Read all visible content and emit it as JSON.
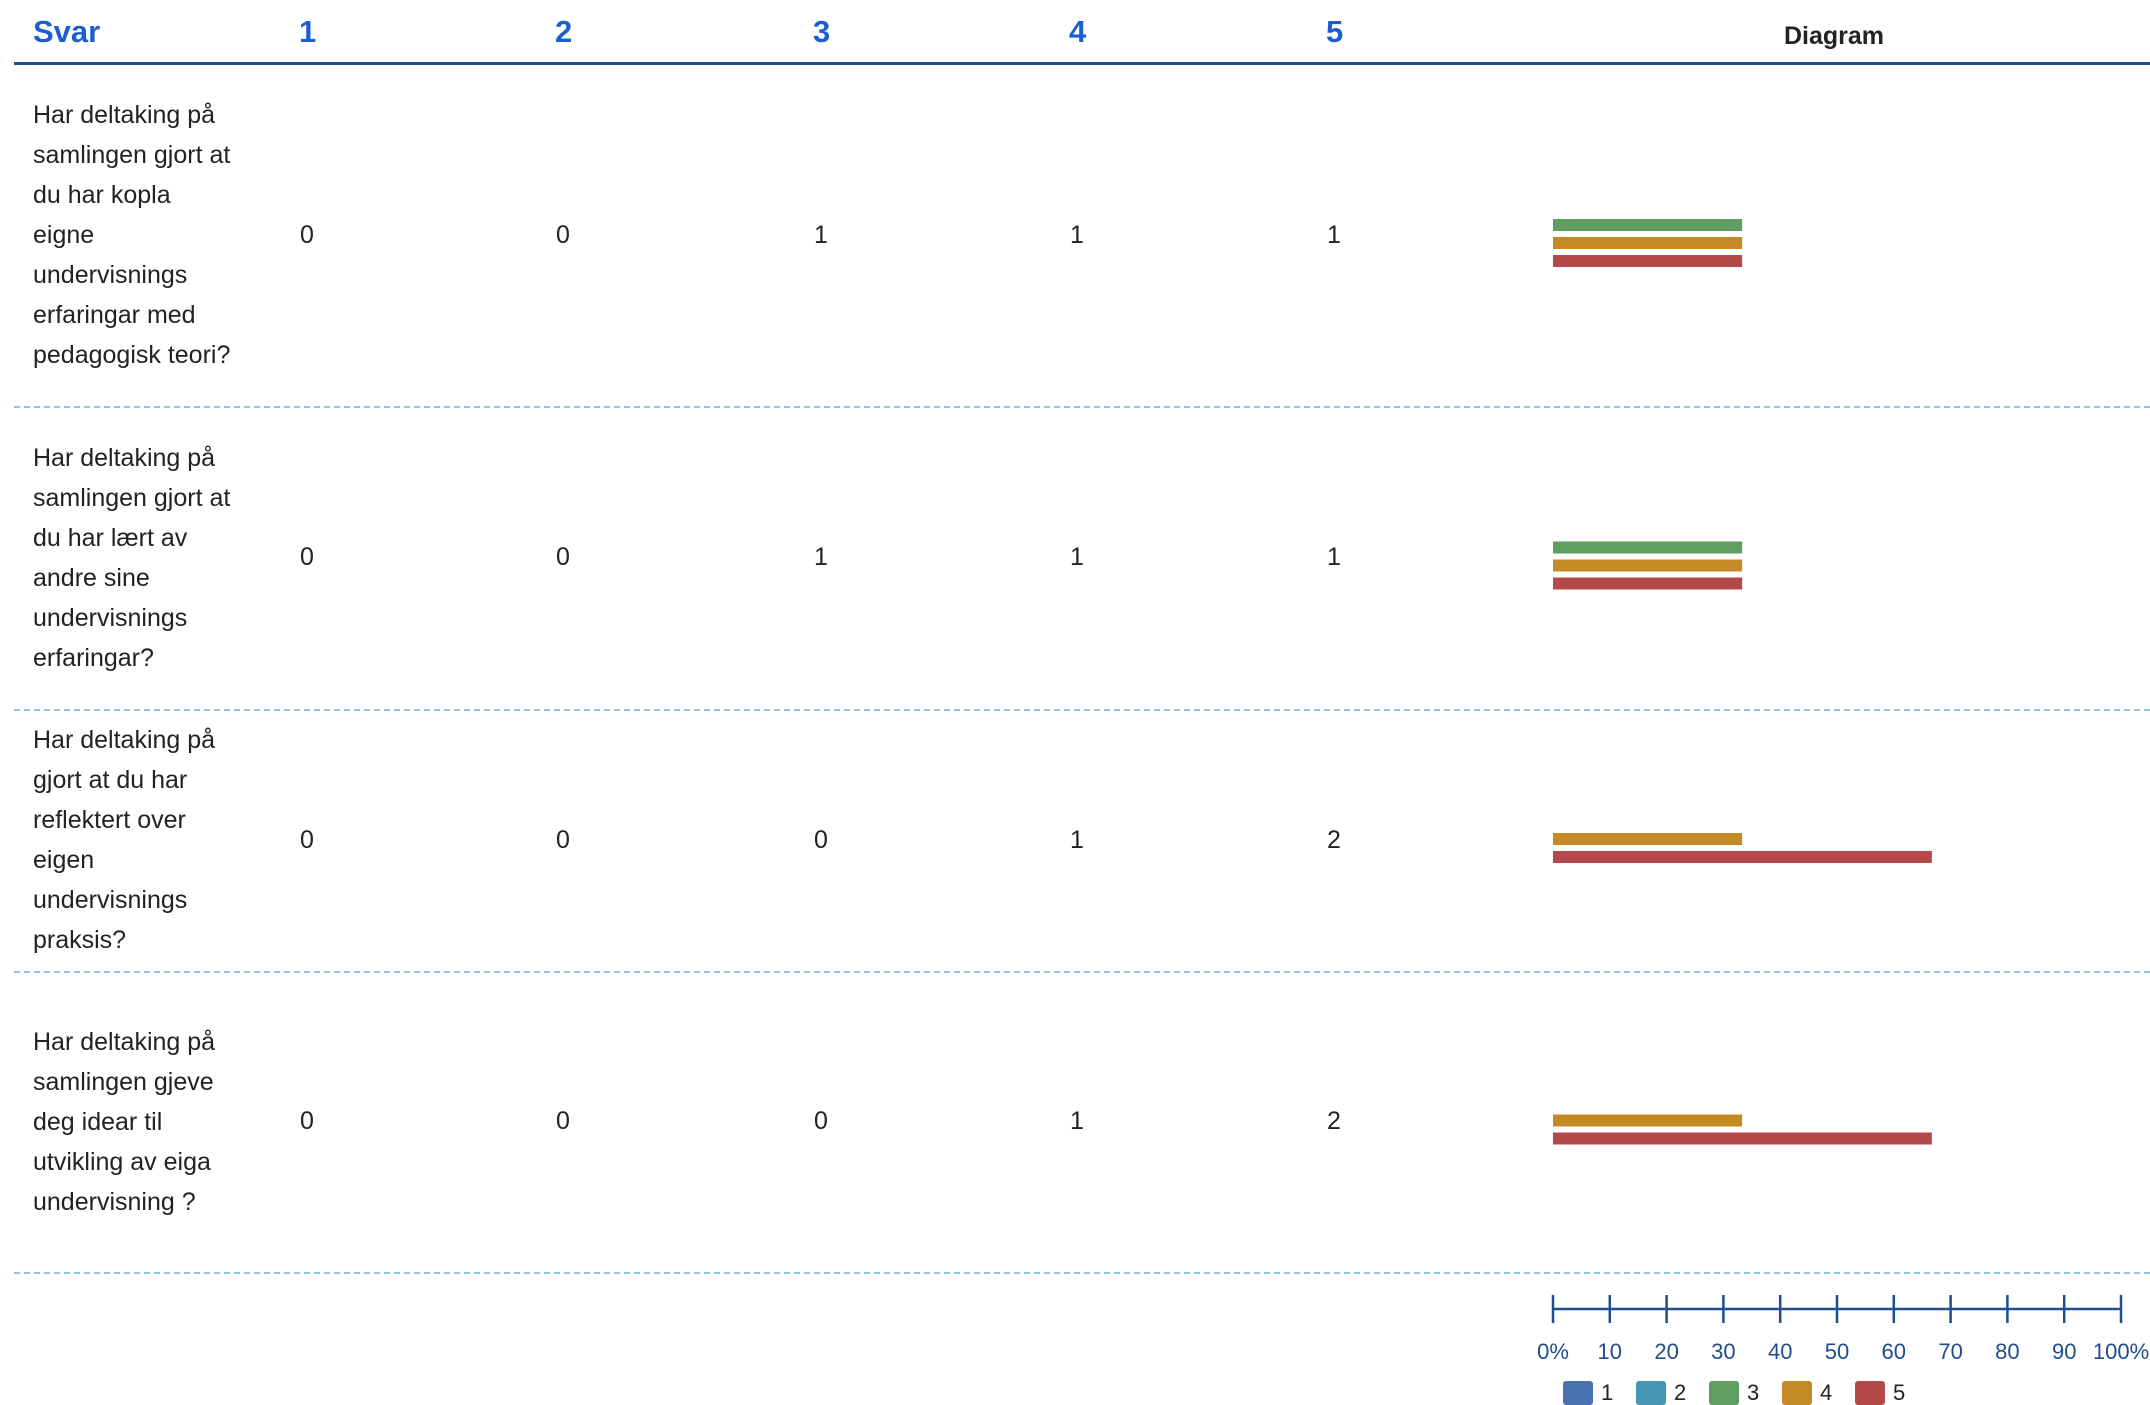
{
  "table": {
    "header": [
      "Svar",
      "1",
      "2",
      "3",
      "4",
      "5",
      "Diagram"
    ],
    "rows": [
      {
        "question": "Har deltaking på samlingen gjort at du har kopla eigne undervisnings erfaringar med pedagogisk teori?",
        "counts": [
          0,
          0,
          1,
          1,
          1
        ]
      },
      {
        "question": "Har deltaking på samlingen gjort at du har lært av andre sine undervisnings erfaringar?",
        "counts": [
          0,
          0,
          1,
          1,
          1
        ]
      },
      {
        "question": "Har deltaking på gjort at du har reflektert over eigen undervisnings praksis?",
        "counts": [
          0,
          0,
          0,
          1,
          2
        ]
      },
      {
        "question": "Har deltaking på samlingen gjeve deg idear til utvikling av eiga undervisning ?",
        "counts": [
          0,
          0,
          0,
          1,
          2
        ]
      }
    ]
  },
  "chart_data": {
    "type": "bar",
    "orientation": "horizontal",
    "series": [
      {
        "name": "1",
        "color": "#4a72b0",
        "values": [
          0,
          0,
          0,
          0
        ]
      },
      {
        "name": "2",
        "color": "#4597b5",
        "values": [
          0,
          0,
          0,
          0
        ]
      },
      {
        "name": "3",
        "color": "#5e9e5e",
        "values": [
          33.3,
          33.3,
          0,
          0
        ]
      },
      {
        "name": "4",
        "color": "#c48a25",
        "values": [
          33.3,
          33.3,
          33.3,
          33.3
        ]
      },
      {
        "name": "5",
        "color": "#b54848",
        "values": [
          33.3,
          33.3,
          66.7,
          66.7
        ]
      }
    ],
    "xlim": [
      0,
      100
    ],
    "xticks": [
      {
        "value": 0,
        "label": "0%"
      },
      10,
      20,
      30,
      40,
      50,
      60,
      70,
      80,
      90,
      {
        "value": 100,
        "label": "100%"
      }
    ],
    "axis_color": "#1f4e8c"
  }
}
